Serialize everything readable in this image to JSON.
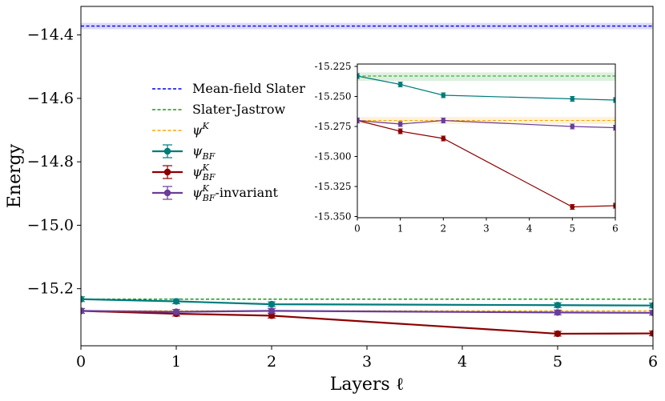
{
  "chart_data": [
    {
      "id": "main",
      "type": "line",
      "xlabel": "Layers ℓ",
      "ylabel": "Energy",
      "xlim": [
        0,
        6
      ],
      "ylim": [
        -15.38,
        -14.31
      ],
      "xticks": [
        0,
        1,
        2,
        3,
        4,
        5,
        6
      ],
      "yticks": [
        -14.4,
        -14.6,
        -14.8,
        -15.0,
        -15.2
      ],
      "ytick_labels": [
        "−14.4",
        "−14.6",
        "−14.8",
        "−15.0",
        "−15.2"
      ],
      "hlines": [
        {
          "name": "Mean-field Slater",
          "value": -14.372,
          "color": "#0000ee",
          "band": [
            -14.362,
            -14.382
          ]
        },
        {
          "name": "Slater-Jastrow",
          "value": -15.233,
          "color": "#1a9a1a"
        },
        {
          "name": "ψ^K",
          "value": -15.27,
          "color": "#ffa500"
        }
      ],
      "series": [
        {
          "name": "ψ_BF",
          "color": "#007b7b",
          "x": [
            0,
            1,
            2,
            5,
            6
          ],
          "y": [
            -15.233,
            -15.24,
            -15.249,
            -15.252,
            -15.253
          ]
        },
        {
          "name": "ψ^K_BF",
          "color": "#8b0000",
          "x": [
            0,
            1,
            2,
            5,
            6
          ],
          "y": [
            -15.27,
            -15.279,
            -15.285,
            -15.342,
            -15.341
          ]
        },
        {
          "name": "ψ^K_BF-invariant",
          "color": "#6a3d9a",
          "x": [
            0,
            1,
            2,
            5,
            6
          ],
          "y": [
            -15.27,
            -15.273,
            -15.27,
            -15.275,
            -15.276
          ]
        }
      ]
    },
    {
      "id": "inset",
      "type": "line",
      "xlim": [
        0,
        6
      ],
      "ylim": [
        -15.351,
        -15.223
      ],
      "xticks": [
        0,
        1,
        2,
        3,
        4,
        5,
        6
      ],
      "yticks": [
        -15.225,
        -15.25,
        -15.275,
        -15.3,
        -15.325,
        -15.35
      ],
      "ytick_labels": [
        "-15.225",
        "-15.250",
        "-15.275",
        "-15.300",
        "-15.325",
        "-15.350"
      ],
      "hlines": [
        {
          "name": "Slater-Jastrow",
          "value": -15.233,
          "color": "#1a9a1a",
          "band": [
            -15.23,
            -15.237
          ]
        },
        {
          "name": "ψ^K",
          "value": -15.27,
          "color": "#ffa500",
          "band": [
            -15.267,
            -15.273
          ]
        }
      ],
      "series": [
        {
          "name": "ψ_BF",
          "color": "#007b7b",
          "x": [
            0,
            1,
            2,
            5,
            6
          ],
          "y": [
            -15.233,
            -15.24,
            -15.249,
            -15.252,
            -15.253
          ]
        },
        {
          "name": "ψ^K_BF",
          "color": "#8b0000",
          "x": [
            0,
            1,
            2,
            5,
            6
          ],
          "y": [
            -15.27,
            -15.279,
            -15.285,
            -15.342,
            -15.341
          ]
        },
        {
          "name": "ψ^K_BF-invariant",
          "color": "#6a3d9a",
          "x": [
            0,
            1,
            2,
            5,
            6
          ],
          "y": [
            -15.27,
            -15.273,
            -15.27,
            -15.275,
            -15.276
          ]
        }
      ]
    }
  ],
  "legend": {
    "position": "center-left",
    "entries": [
      {
        "kind": "dashed",
        "color": "#0000ee",
        "base": "Mean-field Slater",
        "sub": "",
        "sup": "",
        "suffix": ""
      },
      {
        "kind": "dashed",
        "color": "#1a9a1a",
        "base": "Slater-Jastrow",
        "sub": "",
        "sup": "",
        "suffix": ""
      },
      {
        "kind": "dashed",
        "color": "#ffa500",
        "base": "ψ",
        "sub": "",
        "sup": "K",
        "suffix": ""
      },
      {
        "kind": "marker",
        "color": "#007b7b",
        "base": "ψ",
        "sub": "BF",
        "sup": "",
        "suffix": ""
      },
      {
        "kind": "marker",
        "color": "#8b0000",
        "base": "ψ",
        "sub": "BF",
        "sup": "K",
        "suffix": ""
      },
      {
        "kind": "marker",
        "color": "#6a3d9a",
        "base": "ψ",
        "sub": "BF",
        "sup": "K",
        "suffix": "-invariant"
      }
    ]
  }
}
